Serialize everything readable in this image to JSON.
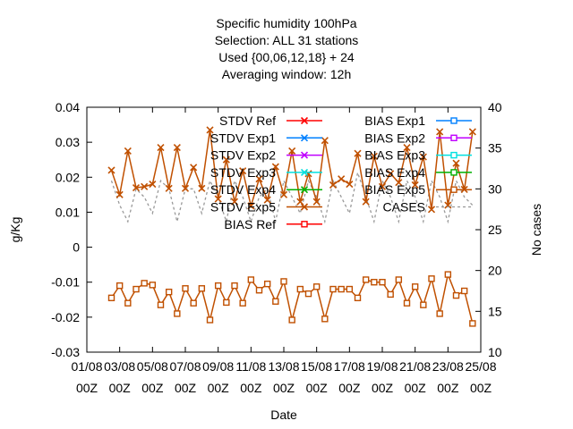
{
  "chart_data": {
    "type": "line",
    "title_lines": [
      "Specific humidity 100hPa",
      "Selection: ALL     31 stations",
      "Used {00,06,12,18} + 24",
      "Averaging window: 12h"
    ],
    "xlabel": "Date",
    "ylabel": "g/Kg",
    "y2label": "No cases",
    "ylim": [
      -0.03,
      0.04
    ],
    "y2lim": [
      10,
      40
    ],
    "yticks": [
      "-0.03",
      "-0.02",
      "-0.01",
      "0",
      "0.01",
      "0.02",
      "0.03",
      "0.04"
    ],
    "y2ticks": [
      "10",
      "15",
      "20",
      "25",
      "30",
      "35",
      "40"
    ],
    "xticks": [
      {
        "top": "01/08",
        "bottom": "00Z"
      },
      {
        "top": "03/08",
        "bottom": "00Z"
      },
      {
        "top": "05/08",
        "bottom": "00Z"
      },
      {
        "top": "07/08",
        "bottom": "00Z"
      },
      {
        "top": "09/08",
        "bottom": "00Z"
      },
      {
        "top": "11/08",
        "bottom": "00Z"
      },
      {
        "top": "13/08",
        "bottom": "00Z"
      },
      {
        "top": "15/08",
        "bottom": "00Z"
      },
      {
        "top": "17/08",
        "bottom": "00Z"
      },
      {
        "top": "19/08",
        "bottom": "00Z"
      },
      {
        "top": "21/08",
        "bottom": "00Z"
      },
      {
        "top": "23/08",
        "bottom": "00Z"
      },
      {
        "top": "25/08",
        "bottom": "00Z"
      }
    ],
    "x_range_days": [
      0,
      24
    ],
    "x_start_day": 1.5,
    "x_step_days": 0.5,
    "legend": [
      {
        "name": "STDV Ref",
        "color": "#ff0000",
        "marker": "x"
      },
      {
        "name": "STDV Exp1",
        "color": "#0080ff",
        "marker": "x"
      },
      {
        "name": "STDV Exp2",
        "color": "#c000ff",
        "marker": "x"
      },
      {
        "name": "STDV Exp3",
        "color": "#00e0e0",
        "marker": "x"
      },
      {
        "name": "STDV Exp4",
        "color": "#00b000",
        "marker": "x"
      },
      {
        "name": "STDV Exp5",
        "color": "#c05000",
        "marker": "x"
      },
      {
        "name": "BIAS Ref",
        "color": "#ff0000",
        "marker": "square"
      },
      {
        "name": "BIAS Exp1",
        "color": "#0080ff",
        "marker": "square"
      },
      {
        "name": "BIAS Exp2",
        "color": "#c000ff",
        "marker": "square"
      },
      {
        "name": "BIAS Exp3",
        "color": "#00e0e0",
        "marker": "square"
      },
      {
        "name": "BIAS Exp4",
        "color": "#00b000",
        "marker": "square"
      },
      {
        "name": "BIAS Exp5",
        "color": "#c05000",
        "marker": "square"
      },
      {
        "name": "CASES",
        "color": "#999999",
        "marker": "none"
      }
    ],
    "series_stdv": [
      0.022,
      0.015,
      0.0275,
      0.017,
      0.0173,
      0.018,
      0.0285,
      0.0168,
      0.0285,
      0.0168,
      0.0228,
      0.0168,
      0.0335,
      0.0138,
      0.025,
      0.013,
      0.0218,
      0.0118,
      0.0195,
      0.0135,
      0.023,
      0.015,
      0.0275,
      0.013,
      0.021,
      0.013,
      0.0305,
      0.0178,
      0.0195,
      0.018,
      0.0268,
      0.013,
      0.026,
      0.0173,
      0.021,
      0.0185,
      0.0285,
      0.0178,
      0.0258,
      0.0108,
      0.033,
      0.012,
      0.024,
      0.0165,
      0.033
    ],
    "series_bias": [
      -0.0145,
      -0.011,
      -0.016,
      -0.012,
      -0.0103,
      -0.0108,
      -0.0165,
      -0.0128,
      -0.019,
      -0.0118,
      -0.016,
      -0.0118,
      -0.0208,
      -0.011,
      -0.0158,
      -0.011,
      -0.016,
      -0.0093,
      -0.0123,
      -0.0105,
      -0.0155,
      -0.0098,
      -0.0208,
      -0.012,
      -0.0133,
      -0.0113,
      -0.0205,
      -0.012,
      -0.012,
      -0.012,
      -0.0145,
      -0.0093,
      -0.01,
      -0.01,
      -0.0135,
      -0.0093,
      -0.016,
      -0.0113,
      -0.0165,
      -0.009,
      -0.019,
      -0.0078,
      -0.0138,
      -0.0125,
      -0.0218
    ],
    "series_cases": [
      31,
      28,
      26,
      30,
      29,
      27,
      31,
      30,
      26,
      30,
      30,
      27,
      31,
      29,
      26,
      31,
      29,
      26,
      29,
      30,
      26,
      31,
      29,
      27,
      31,
      29,
      26,
      31,
      29,
      27,
      32,
      29,
      26,
      31,
      29,
      26,
      31,
      29,
      26,
      31,
      29,
      26,
      31,
      29,
      28
    ],
    "grid": false,
    "legend_placement": "top-right inside"
  }
}
